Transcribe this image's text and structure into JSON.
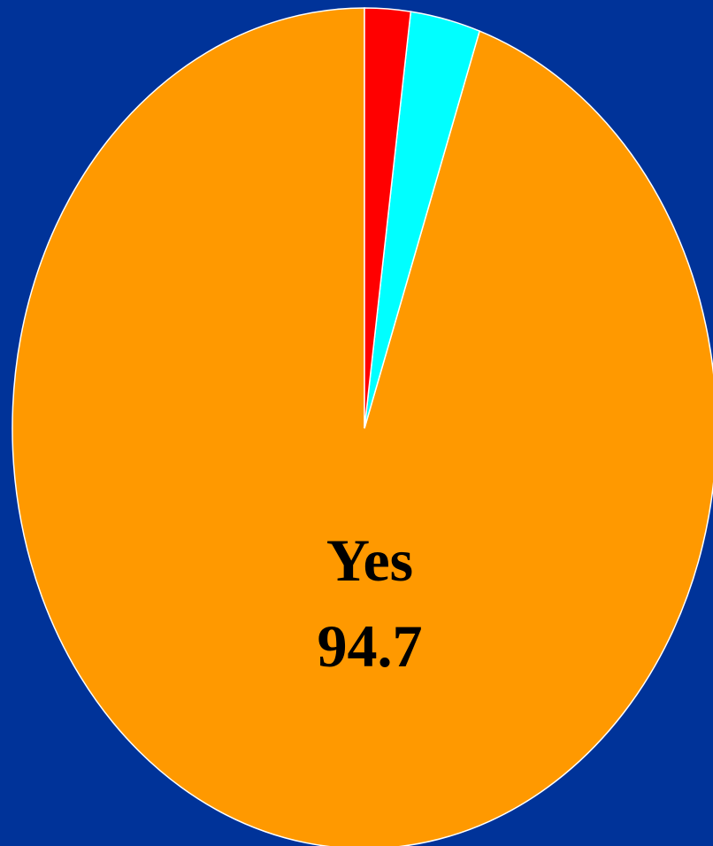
{
  "colors": {
    "background": "#003399",
    "slice_outline": "#ffffff",
    "label_text": "#000000"
  },
  "chart_data": {
    "type": "pie",
    "start_angle_deg": 0,
    "direction": "clockwise",
    "slices": [
      {
        "name": "Yes",
        "value": 94.7,
        "color": "#ff9900",
        "label": "Yes",
        "value_label": "94.7"
      },
      {
        "name": "",
        "value": 3.2,
        "color": "#00ffff",
        "label": "",
        "value_label": ""
      },
      {
        "name": "",
        "value": 2.1,
        "color": "#ff0000",
        "label": "",
        "value_label": ""
      }
    ]
  }
}
